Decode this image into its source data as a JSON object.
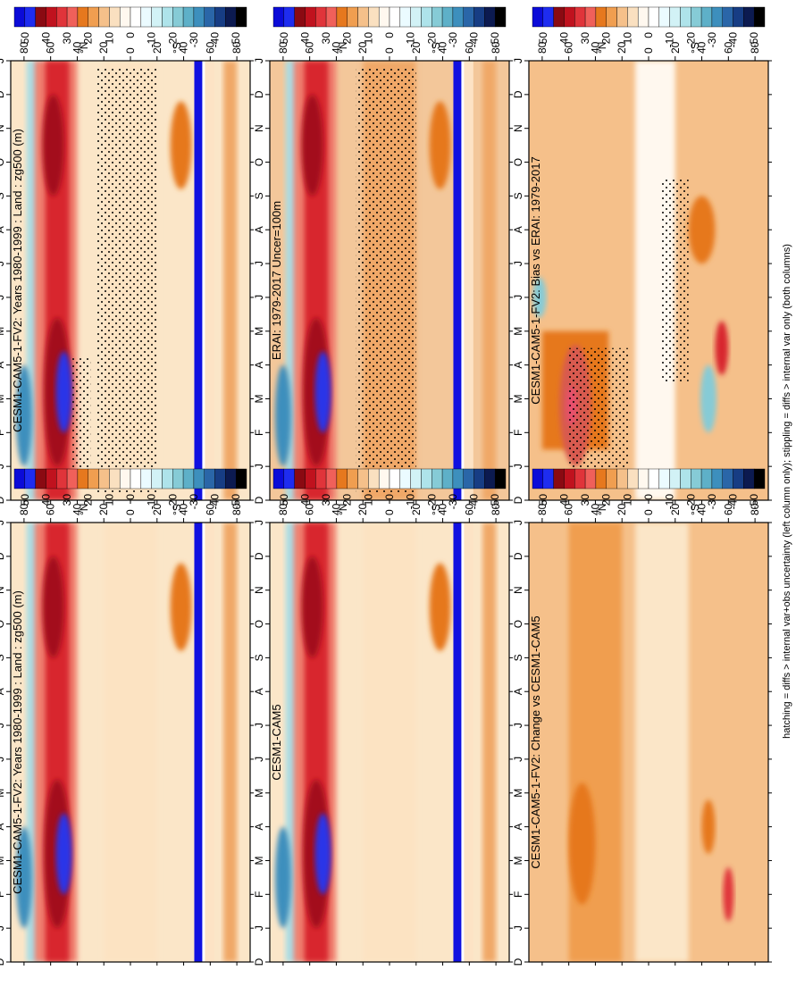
{
  "figure": {
    "footnote": "hatching = diffs > internal var+obs uncertainty (left column only); stippling = diffs > internal var only (both columns)"
  },
  "colorbar": {
    "labels": [
      "50",
      "40",
      "30",
      "20",
      "10",
      "0",
      "-10",
      "-20",
      "-30",
      "-40",
      "-50"
    ],
    "colors": [
      "#0b0bd8",
      "#1e2cf0",
      "#8a0a12",
      "#c0121e",
      "#e0343a",
      "#f0605a",
      "#e6781e",
      "#f09e50",
      "#f5c08a",
      "#fae0c0",
      "#fff8ef",
      "#ffffff",
      "#ebfbff",
      "#d2f2f6",
      "#aee3ea",
      "#86cbd6",
      "#5eb0c8",
      "#3d8fbd",
      "#2a66a8",
      "#173d84",
      "#0c1a50",
      "#000000"
    ]
  },
  "chart_data": [
    {
      "type": "heatmap",
      "title": "CESM1-CAM5-1-FV2: Years 1980-1999 : Land : zg500 (m)",
      "x_ticks": [
        "D",
        "J",
        "F",
        "M",
        "A",
        "M",
        "J",
        "J",
        "A",
        "S",
        "O",
        "N",
        "D",
        "J"
      ],
      "y_ticks": [
        "80",
        "60",
        "40",
        "20",
        "0",
        "20",
        "40",
        "60",
        "80"
      ],
      "y_hemisphere": [
        "°N",
        "°S"
      ],
      "stippling": true
    },
    {
      "type": "heatmap",
      "title": "CESM1-CAM5-1-FV2: Years 1980-1999 : Land : zg500 (m)",
      "x_ticks": [
        "D",
        "J",
        "F",
        "M",
        "A",
        "M",
        "J",
        "J",
        "A",
        "S",
        "O",
        "N",
        "D",
        "J"
      ],
      "y_ticks": [
        "80",
        "60",
        "40",
        "20",
        "0",
        "20",
        "40",
        "60",
        "80"
      ],
      "y_hemisphere": [
        "°N",
        "°S"
      ],
      "stippling": false
    },
    {
      "type": "heatmap",
      "title": "ERAI: 1979-2017 Uncer=100m",
      "x_ticks": [
        "D",
        "J",
        "F",
        "M",
        "A",
        "M",
        "J",
        "J",
        "A",
        "S",
        "O",
        "N",
        "D",
        "J"
      ],
      "y_ticks": [
        "80",
        "60",
        "40",
        "20",
        "0",
        "20",
        "40",
        "60",
        "80"
      ],
      "y_hemisphere": [
        "°N",
        "°S"
      ],
      "stippling": true
    },
    {
      "type": "heatmap",
      "title": "CESM1-CAM5",
      "x_ticks": [
        "D",
        "J",
        "F",
        "M",
        "A",
        "M",
        "J",
        "J",
        "A",
        "S",
        "O",
        "N",
        "D",
        "J"
      ],
      "y_ticks": [
        "80",
        "60",
        "40",
        "20",
        "0",
        "20",
        "40",
        "60",
        "80"
      ],
      "y_hemisphere": [
        "°N",
        "°S"
      ],
      "stippling": false
    },
    {
      "type": "heatmap",
      "title": "CESM1-CAM5-1-FV2: Bias vs ERAI: 1979-2017",
      "x_ticks": [
        "D",
        "J",
        "F",
        "M",
        "A",
        "M",
        "J",
        "J",
        "A",
        "S",
        "O",
        "N",
        "D",
        "J"
      ],
      "y_ticks": [
        "80",
        "60",
        "40",
        "20",
        "0",
        "20",
        "40",
        "60",
        "80"
      ],
      "y_hemisphere": [
        "°N",
        "°S"
      ],
      "stippling": true
    },
    {
      "type": "heatmap",
      "title": "CESM1-CAM5-1-FV2: Change vs CESM1-CAM5",
      "x_ticks": [
        "D",
        "J",
        "F",
        "M",
        "A",
        "M",
        "J",
        "J",
        "A",
        "S",
        "O",
        "N",
        "D",
        "J"
      ],
      "y_ticks": [
        "80",
        "60",
        "40",
        "20",
        "0",
        "20",
        "40",
        "60",
        "80"
      ],
      "y_hemisphere": [
        "°N",
        "°S"
      ],
      "stippling": false
    }
  ]
}
